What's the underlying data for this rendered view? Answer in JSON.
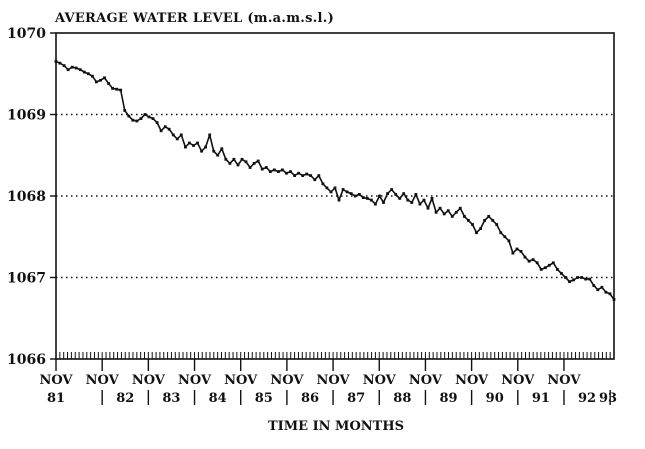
{
  "chart_data": {
    "type": "line",
    "title": "AVERAGE WATER LEVEL (m.a.m.s.l.)",
    "xlabel": "TIME IN MONTHS",
    "ylabel": "",
    "ylim": [
      1066,
      1070
    ],
    "yticks": [
      "1066",
      "1067",
      "1068",
      "1069",
      "1070"
    ],
    "gridlines_y": [
      1067,
      1068,
      1069
    ],
    "grid": "dotted horizontal",
    "xlim": [
      0,
      145
    ],
    "xtick_top": [
      "NOV",
      "NOV",
      "NOV",
      "NOV",
      "NOV",
      "NOV",
      "NOV",
      "NOV",
      "NOV",
      "NOV",
      "NOV",
      "NOV"
    ],
    "xtick_bottom": [
      "81",
      "82",
      "83",
      "84",
      "85",
      "86",
      "87",
      "88",
      "89",
      "90",
      "91",
      "92",
      "93"
    ],
    "series": [
      {
        "values": [
          1069.65,
          1069.63,
          1069.6,
          1069.55,
          1069.58,
          1069.57,
          1069.55,
          1069.52,
          1069.5,
          1069.47,
          1069.4,
          1069.42,
          1069.45,
          1069.38,
          1069.32,
          1069.31,
          1069.3,
          1069.05,
          1068.98,
          1068.93,
          1068.92,
          1068.95,
          1069.0,
          1068.97,
          1068.95,
          1068.9,
          1068.8,
          1068.85,
          1068.82,
          1068.75,
          1068.7,
          1068.75,
          1068.6,
          1068.65,
          1068.62,
          1068.65,
          1068.55,
          1068.6,
          1068.75,
          1068.55,
          1068.5,
          1068.58,
          1068.45,
          1068.4,
          1068.45,
          1068.38,
          1068.45,
          1068.42,
          1068.35,
          1068.4,
          1068.43,
          1068.33,
          1068.35,
          1068.3,
          1068.32,
          1068.3,
          1068.32,
          1068.28,
          1068.3,
          1068.25,
          1068.28,
          1068.25,
          1068.27,
          1068.25,
          1068.2,
          1068.25,
          1068.15,
          1068.1,
          1068.05,
          1068.1,
          1067.95,
          1068.08,
          1068.05,
          1068.03,
          1068.0,
          1068.02,
          1067.98,
          1067.97,
          1067.95,
          1067.9,
          1068.0,
          1067.92,
          1068.03,
          1068.08,
          1068.02,
          1067.97,
          1068.03,
          1067.95,
          1067.92,
          1068.02,
          1067.9,
          1067.95,
          1067.85,
          1067.97,
          1067.8,
          1067.85,
          1067.78,
          1067.82,
          1067.75,
          1067.8,
          1067.85,
          1067.75,
          1067.7,
          1067.65,
          1067.55,
          1067.6,
          1067.7,
          1067.75,
          1067.7,
          1067.65,
          1067.55,
          1067.5,
          1067.45,
          1067.3,
          1067.35,
          1067.32,
          1067.25,
          1067.2,
          1067.22,
          1067.18,
          1067.1,
          1067.12,
          1067.15,
          1067.18,
          1067.1,
          1067.05,
          1067.0,
          1066.95,
          1066.97,
          1067.0,
          1067.0,
          1066.98,
          1066.98,
          1066.9,
          1066.85,
          1066.88,
          1066.82,
          1066.8,
          1066.73
        ]
      }
    ]
  }
}
